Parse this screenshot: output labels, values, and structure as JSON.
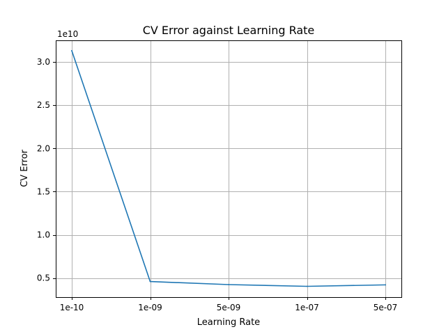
{
  "chart_data": {
    "type": "line",
    "title": "CV Error against Learning Rate",
    "xlabel": "Learning Rate",
    "ylabel": "CV Error",
    "y_offset_label": "1e10",
    "x_scale": "categorical",
    "categories": [
      "1e-10",
      "1e-09",
      "5e-09",
      "1e-07",
      "5e-07"
    ],
    "series": [
      {
        "values": [
          31300000000,
          4600000000,
          4250000000,
          4050000000,
          4220000000
        ],
        "color": "#1f77b4"
      }
    ],
    "ylim": [
      2800000000,
      32500000000
    ],
    "y_ticks": [
      {
        "value": 5000000000,
        "label": "0.5"
      },
      {
        "value": 10000000000,
        "label": "1.0"
      },
      {
        "value": 15000000000,
        "label": "1.5"
      },
      {
        "value": 20000000000,
        "label": "2.0"
      },
      {
        "value": 25000000000,
        "label": "2.5"
      },
      {
        "value": 30000000000,
        "label": "3.0"
      }
    ],
    "grid": true,
    "legend": false
  }
}
